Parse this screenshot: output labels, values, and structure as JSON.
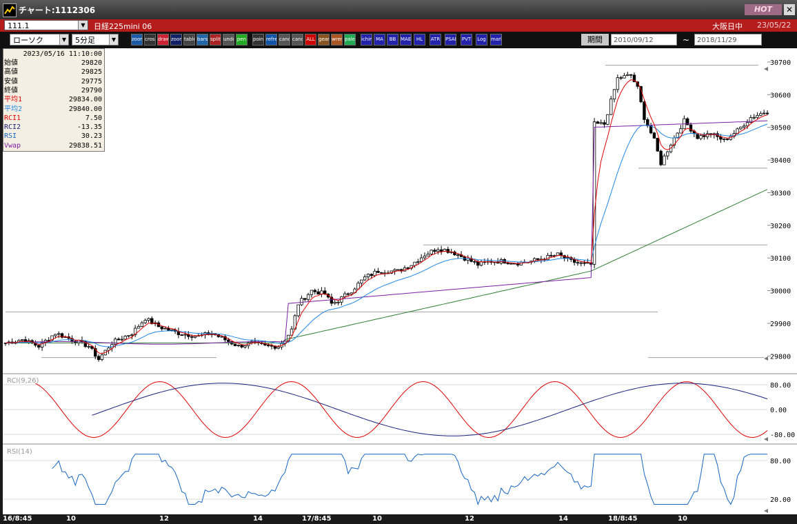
{
  "window": {
    "title": "チャート:1112306",
    "hot_label": "HOT",
    "close_label": "✕"
  },
  "symbolbar": {
    "symbol": "111.1",
    "instrument": "日経225mini 06",
    "market": "大阪日中",
    "date": "23/05/22"
  },
  "toolbar": {
    "chart_type": "ローソク",
    "interval": "5分足",
    "buttons": [
      "zoom-in",
      "crosshair",
      "draw",
      "zoom-tool",
      "table",
      "bars",
      "split",
      "undo",
      "pen",
      "pointer",
      "refresh",
      "candle-a",
      "candle-b",
      "ALL",
      "gear",
      "wrench",
      "palette",
      "ichimoku",
      "MA",
      "BB",
      "MAE",
      "HL",
      "ATR",
      "PSAR",
      "PVT",
      "Log",
      "mark"
    ],
    "period_label": "期間",
    "date_from": "2010/09/12",
    "date_to": "2018/11/29",
    "tilde": "~"
  },
  "info_panel": {
    "datetime": "2023/05/16  11:10:00",
    "rows": [
      {
        "label": "始値",
        "value": "29820",
        "color": "#000000"
      },
      {
        "label": "高値",
        "value": "29825",
        "color": "#000000"
      },
      {
        "label": "安値",
        "value": "29775",
        "color": "#000000"
      },
      {
        "label": "終値",
        "value": "29790",
        "color": "#000000"
      },
      {
        "label": "平均1",
        "value": "29834.00",
        "color": "#e00000"
      },
      {
        "label": "平均2",
        "value": "29840.00",
        "color": "#1e88e5"
      },
      {
        "label": "RCI1",
        "value": "7.50",
        "color": "#e00000"
      },
      {
        "label": "RCI2",
        "value": "-13.35",
        "color": "#1a237e"
      },
      {
        "label": "RSI",
        "value": "30.23",
        "color": "#1565c0"
      },
      {
        "label": "Vwap",
        "value": "29838.51",
        "color": "#7b1fa2"
      }
    ]
  },
  "chart_data": {
    "type": "candlestick",
    "y_ticks": [
      "30700",
      "30600",
      "30500",
      "30400",
      "30300",
      "30200",
      "30100",
      "30000",
      "29900",
      "29800"
    ],
    "ylim": [
      29750,
      30740
    ],
    "x_labels": [
      "16/8:45",
      "10",
      "12",
      "14",
      "17/8:45",
      "10",
      "12",
      "14",
      "18/8:45",
      "10"
    ],
    "price_path": [
      [
        0,
        29840
      ],
      [
        5,
        29850
      ],
      [
        10,
        29830
      ],
      [
        15,
        29870
      ],
      [
        20,
        29850
      ],
      [
        25,
        29830
      ],
      [
        28,
        29790
      ],
      [
        32,
        29840
      ],
      [
        38,
        29870
      ],
      [
        42,
        29915
      ],
      [
        46,
        29890
      ],
      [
        52,
        29870
      ],
      [
        58,
        29860
      ],
      [
        62,
        29870
      ],
      [
        66,
        29850
      ],
      [
        70,
        29830
      ],
      [
        74,
        29840
      ],
      [
        78,
        29830
      ],
      [
        82,
        29830
      ],
      [
        84,
        29850
      ],
      [
        86,
        29880
      ],
      [
        88,
        29960
      ],
      [
        92,
        30000
      ],
      [
        96,
        29990
      ],
      [
        98,
        29960
      ],
      [
        100,
        29970
      ],
      [
        104,
        30000
      ],
      [
        108,
        30040
      ],
      [
        112,
        30060
      ],
      [
        118,
        30060
      ],
      [
        122,
        30080
      ],
      [
        126,
        30110
      ],
      [
        130,
        30130
      ],
      [
        134,
        30120
      ],
      [
        138,
        30100
      ],
      [
        142,
        30080
      ],
      [
        146,
        30090
      ],
      [
        150,
        30090
      ],
      [
        154,
        30085
      ],
      [
        158,
        30090
      ],
      [
        162,
        30100
      ],
      [
        166,
        30110
      ],
      [
        170,
        30090
      ],
      [
        174,
        30080
      ],
      [
        176,
        30080
      ],
      [
        177,
        30510
      ],
      [
        180,
        30510
      ],
      [
        184,
        30650
      ],
      [
        188,
        30660
      ],
      [
        190,
        30620
      ],
      [
        192,
        30530
      ],
      [
        195,
        30460
      ],
      [
        197,
        30390
      ],
      [
        200,
        30450
      ],
      [
        204,
        30520
      ],
      [
        208,
        30470
      ],
      [
        212,
        30480
      ],
      [
        216,
        30460
      ],
      [
        220,
        30490
      ],
      [
        224,
        30530
      ],
      [
        229,
        30550
      ]
    ],
    "series": [
      {
        "name": "平均1",
        "color": "#e00000"
      },
      {
        "name": "平均2",
        "color": "#1e88e5"
      },
      {
        "name": "Vwap",
        "color": "#7b1fa2"
      }
    ],
    "rci": {
      "label": "RCI(9,26)",
      "ticks": [
        "80.00",
        "0.00",
        "-80.00"
      ]
    },
    "rsi": {
      "label": "RSI(14)",
      "ticks": [
        "80.00",
        "20.00"
      ]
    }
  }
}
